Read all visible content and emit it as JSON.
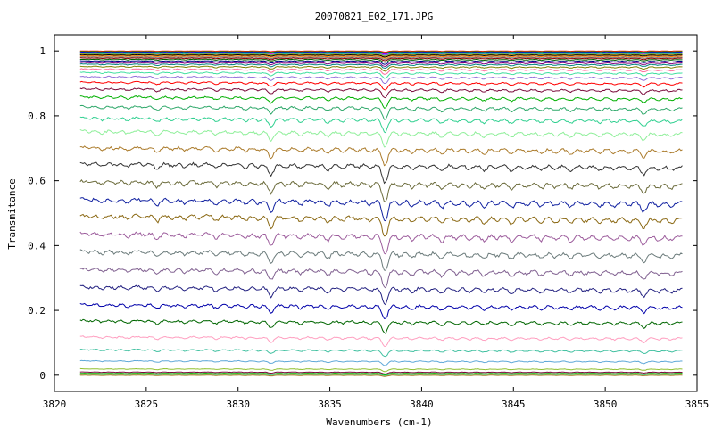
{
  "chart_data": {
    "type": "line",
    "title": "20070821_E02_171.JPG",
    "xlabel": "Wavenumbers (cm-1)",
    "ylabel": "Transmitance",
    "xlim": [
      3820,
      3855
    ],
    "ylim": [
      -0.05,
      1.05
    ],
    "x_data_range": [
      3821.4,
      3854.2
    ],
    "x_ticks": [
      3820,
      3825,
      3830,
      3835,
      3840,
      3845,
      3850,
      3855
    ],
    "x_tick_labels": [
      "3820",
      "3825",
      "3830",
      "3835",
      "3840",
      "3845",
      "3850",
      "3855"
    ],
    "y_ticks": [
      0,
      0.2,
      0.4,
      0.6,
      0.8,
      1
    ],
    "y_tick_labels": [
      "0",
      "0.2",
      "0.4",
      "0.6",
      "0.8",
      "1"
    ],
    "grid": false,
    "legend": false,
    "series_count": 45,
    "series_baseline_levels": [
      1.0,
      0.998,
      0.996,
      0.994,
      0.992,
      0.99,
      0.988,
      0.985,
      0.982,
      0.979,
      0.975,
      0.97,
      0.965,
      0.96,
      0.953,
      0.945,
      0.935,
      0.922,
      0.905,
      0.885,
      0.86,
      0.83,
      0.795,
      0.755,
      0.705,
      0.655,
      0.6,
      0.545,
      0.495,
      0.44,
      0.385,
      0.33,
      0.275,
      0.22,
      0.17,
      0.12,
      0.08,
      0.045,
      0.02,
      0.01,
      0.006,
      0.003,
      0.002,
      0.001,
      0.0
    ],
    "absorption_lines": [
      {
        "x": 3821.9,
        "depth": 0.1
      },
      {
        "x": 3822.6,
        "depth": 0.18
      },
      {
        "x": 3823.3,
        "depth": 0.14
      },
      {
        "x": 3824.0,
        "depth": 0.2
      },
      {
        "x": 3824.9,
        "depth": 0.12
      },
      {
        "x": 3825.6,
        "depth": 0.3
      },
      {
        "x": 3826.4,
        "depth": 0.16
      },
      {
        "x": 3827.1,
        "depth": 0.2
      },
      {
        "x": 3827.9,
        "depth": 0.14
      },
      {
        "x": 3828.8,
        "depth": 0.25
      },
      {
        "x": 3829.6,
        "depth": 0.14
      },
      {
        "x": 3830.4,
        "depth": 0.22
      },
      {
        "x": 3831.1,
        "depth": 0.18
      },
      {
        "x": 3831.8,
        "depth": 0.55
      },
      {
        "x": 3832.6,
        "depth": 0.18
      },
      {
        "x": 3833.4,
        "depth": 0.24
      },
      {
        "x": 3834.2,
        "depth": 0.14
      },
      {
        "x": 3834.9,
        "depth": 0.3
      },
      {
        "x": 3835.7,
        "depth": 0.2
      },
      {
        "x": 3836.5,
        "depth": 0.16
      },
      {
        "x": 3837.2,
        "depth": 0.22
      },
      {
        "x": 3838.0,
        "depth": 0.95
      },
      {
        "x": 3838.8,
        "depth": 0.2
      },
      {
        "x": 3839.5,
        "depth": 0.26
      },
      {
        "x": 3840.3,
        "depth": 0.18
      },
      {
        "x": 3841.1,
        "depth": 0.32
      },
      {
        "x": 3841.9,
        "depth": 0.2
      },
      {
        "x": 3842.6,
        "depth": 0.24
      },
      {
        "x": 3843.4,
        "depth": 0.28
      },
      {
        "x": 3844.1,
        "depth": 0.16
      },
      {
        "x": 3844.9,
        "depth": 0.3
      },
      {
        "x": 3845.7,
        "depth": 0.18
      },
      {
        "x": 3846.5,
        "depth": 0.24
      },
      {
        "x": 3847.3,
        "depth": 0.2
      },
      {
        "x": 3848.1,
        "depth": 0.26
      },
      {
        "x": 3848.9,
        "depth": 0.16
      },
      {
        "x": 3849.7,
        "depth": 0.22
      },
      {
        "x": 3850.5,
        "depth": 0.2
      },
      {
        "x": 3851.3,
        "depth": 0.18
      },
      {
        "x": 3852.1,
        "depth": 0.45
      },
      {
        "x": 3852.9,
        "depth": 0.18
      },
      {
        "x": 3853.6,
        "depth": 0.2
      }
    ],
    "palette": [
      "#ff0000",
      "#00a000",
      "#0000ff",
      "#ff00ff",
      "#00bfbf",
      "#c8a000",
      "#000000",
      "#ff8000",
      "#808080",
      "#8b0000",
      "#006400",
      "#00008b",
      "#800080",
      "#008080",
      "#808000",
      "#ff6f9f",
      "#40e0a0",
      "#9370db"
    ],
    "series_colors_lower": [
      "#00b000",
      "#2fa86a",
      "#30d090",
      "#8fef9a",
      "#ab7b2b",
      "#333333",
      "#6b6b3b",
      "#1020a0",
      "#8b6914",
      "#9c5c9c",
      "#6b7b7b",
      "#806090",
      "#222080",
      "#0000aa",
      "#006600",
      "#ff9fc0",
      "#40c0a0",
      "#5fa8d8",
      "#90c030",
      "#7a0a3a"
    ]
  }
}
